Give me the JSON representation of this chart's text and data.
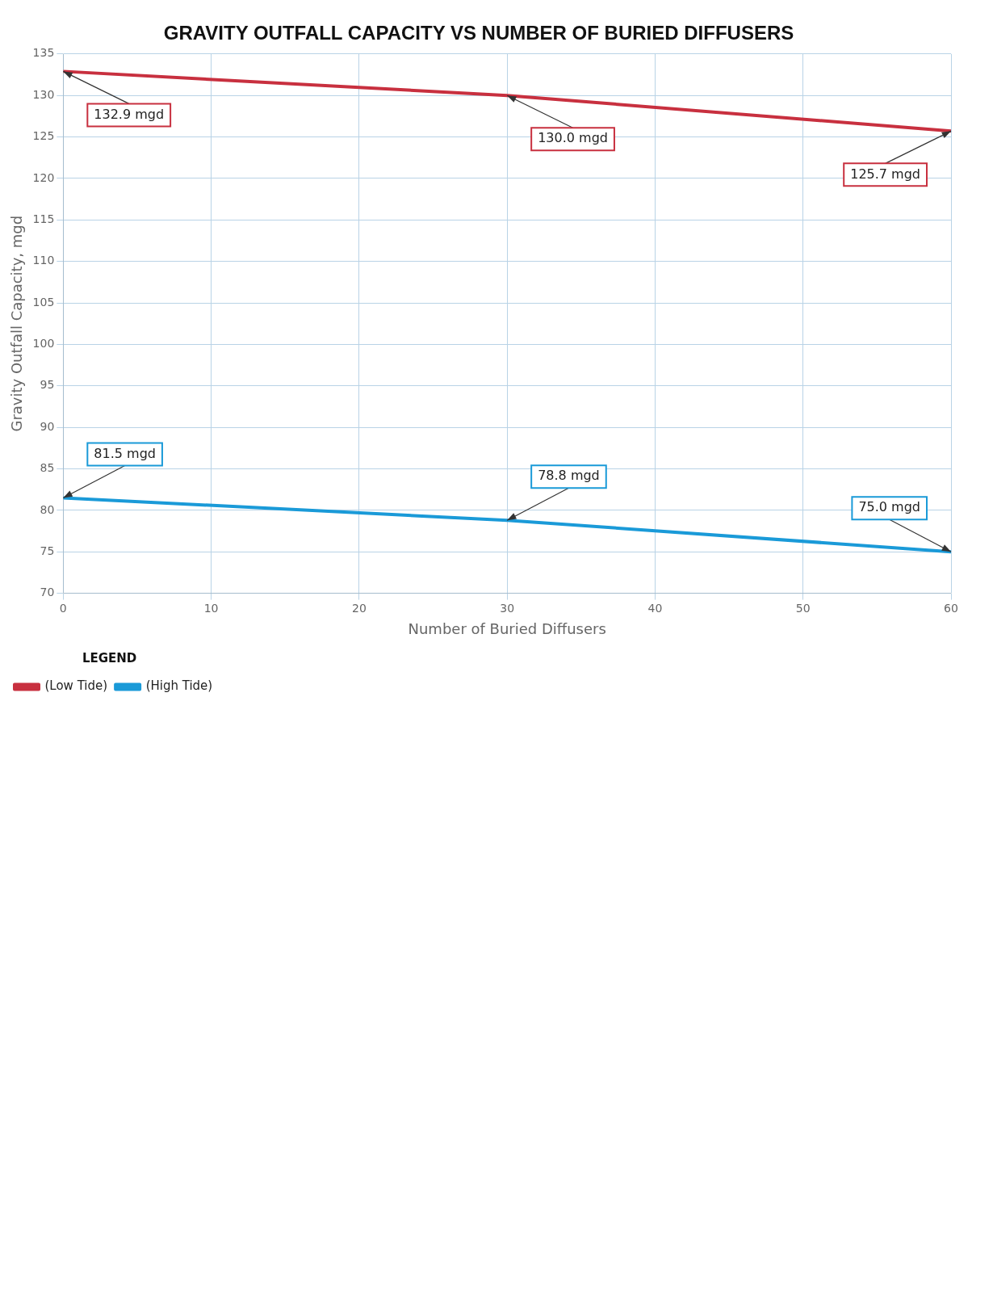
{
  "chart_data": {
    "type": "line",
    "title": "GRAVITY OUTFALL CAPACITY VS NUMBER OF BURIED DIFFUSERS",
    "xlabel": "Number of Buried Diffusers",
    "ylabel": "Gravity Outfall Capacity, mgd",
    "legend_title": "LEGEND",
    "x": [
      0,
      30,
      60
    ],
    "series": [
      {
        "name": "(Low Tide)",
        "color": "#c8303f",
        "values": [
          132.9,
          130.0,
          125.7
        ],
        "value_labels": [
          "132.9 mgd",
          "130.0 mgd",
          "125.7 mgd"
        ]
      },
      {
        "name": "(High Tide)",
        "color": "#1a9ad8",
        "values": [
          81.5,
          78.8,
          75.0
        ],
        "value_labels": [
          "81.5 mgd",
          "78.8 mgd",
          "75.0 mgd"
        ]
      }
    ],
    "xlim": [
      0,
      60
    ],
    "xticks": [
      0,
      10,
      20,
      30,
      40,
      50,
      60
    ],
    "ylim": [
      70,
      135
    ],
    "yticks": [
      70,
      75,
      80,
      85,
      90,
      95,
      100,
      105,
      110,
      115,
      120,
      125,
      130,
      135
    ],
    "grid": true,
    "legend": "bottom left",
    "marker": "none",
    "line_style": "solid"
  }
}
